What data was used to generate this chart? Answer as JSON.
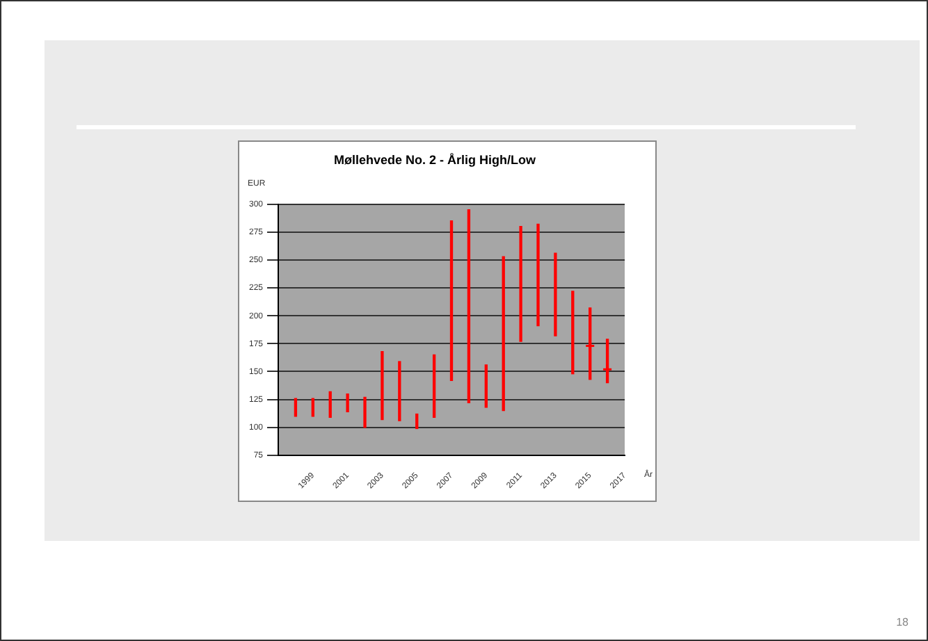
{
  "chart_data": {
    "type": "bar",
    "title": "Møllehvede No. 2 - Årlig High/Low",
    "ylabel": "EUR",
    "xlabel": "År",
    "categories": [
      null,
      null,
      "1999",
      null,
      "2001",
      null,
      "2003",
      null,
      "2005",
      null,
      "2007",
      null,
      "2009",
      null,
      "2011",
      null,
      "2013",
      null,
      "2015",
      null,
      "2017"
    ],
    "series": [
      {
        "color": "#ff0000",
        "base": [
          null,
          110,
          110,
          109,
          114,
          100,
          107,
          106,
          99,
          109,
          142,
          122,
          118,
          115,
          177,
          191,
          182,
          148,
          143,
          140,
          null
        ],
        "values": [
          null,
          16,
          16,
          23,
          16,
          27,
          61,
          53,
          13,
          56,
          143,
          173,
          38,
          138,
          103,
          91,
          74,
          74,
          64,
          39,
          null
        ]
      },
      {
        "type": "scatter",
        "color": "#ff0000",
        "marker": "cross",
        "values": [
          null,
          null,
          null,
          null,
          null,
          null,
          null,
          null,
          null,
          null,
          null,
          null,
          null,
          null,
          null,
          null,
          null,
          null,
          173,
          152,
          null
        ]
      }
    ],
    "ylim": [
      75,
      300
    ],
    "yticks": [
      75,
      100,
      125,
      150,
      175,
      200,
      225,
      250,
      275,
      300
    ],
    "grid": "y",
    "legend": false,
    "annotations": [
      "18"
    ]
  }
}
